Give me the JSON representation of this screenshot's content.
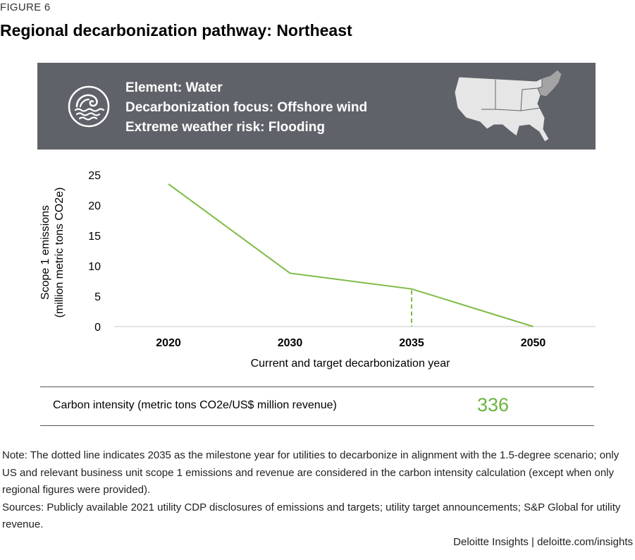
{
  "figure_label": "FIGURE 6",
  "title": "Regional decarbonization pathway: Northeast",
  "banner": {
    "icon": "water-wave-icon",
    "lines": [
      "Element: Water",
      "Decarbonization focus: Offshore wind",
      "Extreme weather risk: Flooding"
    ],
    "map_icon": "us-map-northeast-highlighted",
    "colors": {
      "background": "#5f6369",
      "map_fill": "#e6e6e6",
      "map_highlight": "#a4a4a4"
    }
  },
  "chart_data": {
    "type": "line",
    "x": [
      2020,
      2030,
      2035,
      2050
    ],
    "categories": [
      "2020",
      "2030",
      "2035",
      "2050"
    ],
    "series": [
      {
        "values": [
          23.5,
          8.8,
          6.2,
          0
        ],
        "color": "#7dbc44"
      }
    ],
    "milestone": {
      "x": "2035",
      "style": "dashed",
      "color": "#7dbc44"
    },
    "xlabel": "Current and target decarbonization year",
    "ylabel_lines": [
      "Scope 1 emissions",
      "(million metric tons CO2e)"
    ],
    "yticks": [
      0,
      5,
      10,
      15,
      20,
      25
    ],
    "ylim": [
      0,
      25
    ],
    "grid": false
  },
  "carbon_intensity": {
    "label": "Carbon intensity (metric tons CO2e/US$ million revenue)",
    "value": "336",
    "value_color": "#6cb33f"
  },
  "note": "Note: The dotted line indicates 2035 as the milestone year for utilities to decarbonize in alignment with the 1.5-degree scenario; only US and relevant business unit scope 1 emissions and revenue are considered in the carbon intensity calculation (except when only regional figures were provided).",
  "sources": "Sources: Publicly available 2021 utility CDP disclosures of emissions and targets; utility target announcements; S&P Global for utility revenue.",
  "credit": "Deloitte Insights | deloitte.com/insights"
}
